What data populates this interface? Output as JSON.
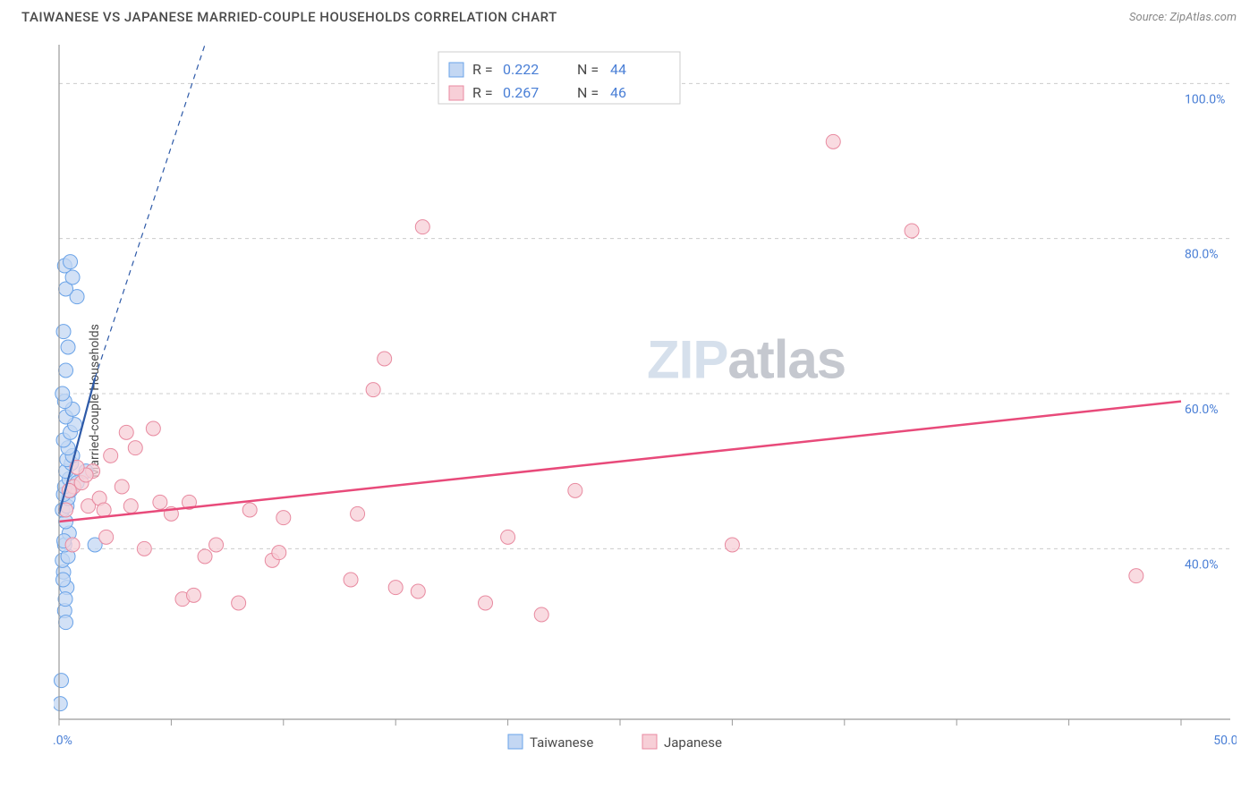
{
  "header": {
    "title": "TAIWANESE VS JAPANESE MARRIED-COUPLE HOUSEHOLDS CORRELATION CHART",
    "source_prefix": "Source: ",
    "source_name": "ZipAtlas.com"
  },
  "chart": {
    "type": "scatter",
    "y_axis_label": "Married-couple Households",
    "xlim": [
      0,
      50
    ],
    "ylim": [
      18,
      105
    ],
    "x_ticks": [
      0,
      5,
      10,
      15,
      20,
      25,
      30,
      35,
      40,
      45,
      50
    ],
    "x_tick_labels": {
      "0": "0.0%",
      "50": "50.0%"
    },
    "y_ticks": [
      40,
      60,
      80,
      100
    ],
    "y_tick_labels": {
      "40": "40.0%",
      "60": "60.0%",
      "80": "80.0%",
      "100": "100.0%"
    },
    "grid_color": "#cccccc",
    "axis_color": "#9a9a9a",
    "background_color": "#ffffff",
    "watermark": {
      "text1": "ZIP",
      "text2": "atlas"
    },
    "series": [
      {
        "name": "Taiwanese",
        "marker_fill": "#c3d7f3",
        "marker_stroke": "#6aa3e8",
        "marker_radius": 8,
        "marker_opacity": 0.75,
        "points": [
          [
            0.05,
            20.0
          ],
          [
            0.1,
            23.0
          ],
          [
            0.25,
            32.0
          ],
          [
            0.3,
            30.5
          ],
          [
            0.35,
            35.0
          ],
          [
            0.2,
            37.0
          ],
          [
            0.15,
            38.5
          ],
          [
            0.4,
            39.0
          ],
          [
            0.25,
            40.5
          ],
          [
            0.45,
            42.0
          ],
          [
            0.3,
            43.5
          ],
          [
            0.15,
            45.0
          ],
          [
            0.35,
            45.5
          ],
          [
            0.4,
            46.5
          ],
          [
            0.2,
            47.0
          ],
          [
            0.5,
            47.5
          ],
          [
            0.25,
            48.0
          ],
          [
            0.45,
            49.0
          ],
          [
            0.3,
            50.0
          ],
          [
            0.55,
            51.0
          ],
          [
            0.35,
            51.5
          ],
          [
            0.6,
            52.0
          ],
          [
            0.4,
            53.0
          ],
          [
            0.2,
            54.0
          ],
          [
            0.5,
            55.0
          ],
          [
            0.7,
            56.0
          ],
          [
            0.3,
            57.0
          ],
          [
            0.6,
            58.0
          ],
          [
            0.25,
            59.0
          ],
          [
            0.15,
            60.0
          ],
          [
            0.3,
            63.0
          ],
          [
            0.4,
            66.0
          ],
          [
            0.2,
            68.0
          ],
          [
            0.8,
            72.5
          ],
          [
            0.3,
            73.5
          ],
          [
            0.6,
            75.0
          ],
          [
            0.25,
            76.5
          ],
          [
            0.5,
            77.0
          ],
          [
            0.18,
            36.0
          ],
          [
            0.22,
            41.0
          ],
          [
            1.6,
            40.5
          ],
          [
            0.8,
            48.5
          ],
          [
            1.2,
            50.0
          ],
          [
            0.28,
            33.5
          ]
        ],
        "trend_solid": {
          "x1": 0,
          "y1": 44.5,
          "x2": 1.6,
          "y2": 62.0
        },
        "trend_dashed": {
          "x1": 1.6,
          "y1": 62.0,
          "x2": 6.5,
          "y2": 105.0
        },
        "trend_color": "#2e5aa8",
        "trend_width": 2.2
      },
      {
        "name": "Japanese",
        "marker_fill": "#f7cfd7",
        "marker_stroke": "#e88aa0",
        "marker_radius": 8,
        "marker_opacity": 0.75,
        "points": [
          [
            0.6,
            40.5
          ],
          [
            0.3,
            45.0
          ],
          [
            0.65,
            48.0
          ],
          [
            1.3,
            45.5
          ],
          [
            1.0,
            48.5
          ],
          [
            1.5,
            50.0
          ],
          [
            1.8,
            46.5
          ],
          [
            2.0,
            45.0
          ],
          [
            0.45,
            47.5
          ],
          [
            1.2,
            49.5
          ],
          [
            0.8,
            50.5
          ],
          [
            2.3,
            52.0
          ],
          [
            3.0,
            55.0
          ],
          [
            3.4,
            53.0
          ],
          [
            2.8,
            48.0
          ],
          [
            4.2,
            55.5
          ],
          [
            4.5,
            46.0
          ],
          [
            3.2,
            45.5
          ],
          [
            5.0,
            44.5
          ],
          [
            5.5,
            33.5
          ],
          [
            6.0,
            34.0
          ],
          [
            5.8,
            46.0
          ],
          [
            8.0,
            33.0
          ],
          [
            7.0,
            40.5
          ],
          [
            8.5,
            45.0
          ],
          [
            9.5,
            38.5
          ],
          [
            9.8,
            39.5
          ],
          [
            10.0,
            44.0
          ],
          [
            13.0,
            36.0
          ],
          [
            13.3,
            44.5
          ],
          [
            14.0,
            60.5
          ],
          [
            14.5,
            64.5
          ],
          [
            15.0,
            35.0
          ],
          [
            16.0,
            34.5
          ],
          [
            16.2,
            81.5
          ],
          [
            19.0,
            33.0
          ],
          [
            20.0,
            41.5
          ],
          [
            21.5,
            31.5
          ],
          [
            23.0,
            47.5
          ],
          [
            30.0,
            40.5
          ],
          [
            34.5,
            92.5
          ],
          [
            38.0,
            81.0
          ],
          [
            48.0,
            36.5
          ],
          [
            3.8,
            40.0
          ],
          [
            2.1,
            41.5
          ],
          [
            6.5,
            39.0
          ]
        ],
        "trend_solid": {
          "x1": 0,
          "y1": 43.5,
          "x2": 50,
          "y2": 59.0
        },
        "trend_color": "#e84a7a",
        "trend_width": 2.5
      }
    ],
    "stats_box": {
      "border_color": "#cccccc",
      "bg_color": "#ffffff",
      "rows": [
        {
          "swatch_fill": "#c3d7f3",
          "swatch_stroke": "#6aa3e8",
          "r_label": "R =",
          "r_value": "0.222",
          "n_label": "N =",
          "n_value": "44"
        },
        {
          "swatch_fill": "#f7cfd7",
          "swatch_stroke": "#e88aa0",
          "r_label": "R =",
          "r_value": "0.267",
          "n_label": "N =",
          "n_value": "46"
        }
      ]
    },
    "legend_bottom": [
      {
        "swatch_fill": "#c3d7f3",
        "swatch_stroke": "#6aa3e8",
        "label": "Taiwanese"
      },
      {
        "swatch_fill": "#f7cfd7",
        "swatch_stroke": "#e88aa0",
        "label": "Japanese"
      }
    ]
  }
}
